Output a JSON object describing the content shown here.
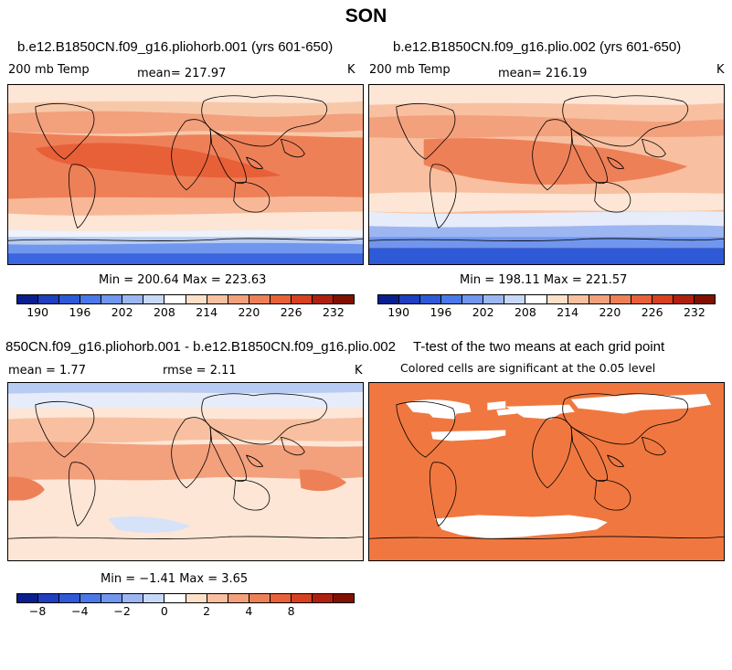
{
  "figure": {
    "title": "SON"
  },
  "panels": [
    {
      "id": "top-left",
      "title": "b.e12.B1850CN.f09_g16.pliohorb.001 (yrs 601-650)",
      "left_label": "200 mb Temp",
      "center_label": "mean= 217.97",
      "right_label": "K",
      "stats": "Min = 200.64 Max = 223.63"
    },
    {
      "id": "top-right",
      "title": "b.e12.B1850CN.f09_g16.plio.002 (yrs 601-650)",
      "left_label": "200 mb Temp",
      "center_label": "mean= 216.19",
      "right_label": "K",
      "stats": "Min = 198.11 Max = 221.57"
    },
    {
      "id": "bottom-left",
      "title": "850CN.f09_g16.pliohorb.001 - b.e12.B1850CN.f09_g16.plio.002",
      "left_label": "mean =    1.77",
      "center_label": "rmse =    2.11",
      "right_label": "K",
      "stats": "Min =  −1.41 Max =    3.65"
    },
    {
      "id": "bottom-right",
      "title": "T-test of the two means at each grid point",
      "subtitle": "Colored cells are significant at the 0.05 level"
    }
  ],
  "colorbars": {
    "temperature": {
      "ticks": [
        "190",
        "196",
        "202",
        "208",
        "214",
        "220",
        "226",
        "232"
      ],
      "colors": [
        "#0a1f8f",
        "#1f3fbf",
        "#2e5ad8",
        "#4a78e8",
        "#7096ee",
        "#9cb6f2",
        "#c8d8f8",
        "#ffffff",
        "#fde0c8",
        "#f8c0a0",
        "#f3a07c",
        "#ee8058",
        "#e86038",
        "#d84020",
        "#b02010",
        "#801000"
      ]
    },
    "difference": {
      "ticks": [
        "−8",
        "−4",
        "−2",
        "0",
        "2",
        "4",
        "8"
      ],
      "colors": [
        "#0a1f8f",
        "#1f3fbf",
        "#2e5ad8",
        "#4a78e8",
        "#7096ee",
        "#9cb6f2",
        "#c8d8f8",
        "#ffffff",
        "#fde0c8",
        "#f8c0a0",
        "#f3a07c",
        "#ee8058",
        "#e86038",
        "#d84020",
        "#b02010",
        "#801000"
      ]
    }
  },
  "map_colors": {
    "significant": "#f07840",
    "land_outline": "#000000"
  }
}
